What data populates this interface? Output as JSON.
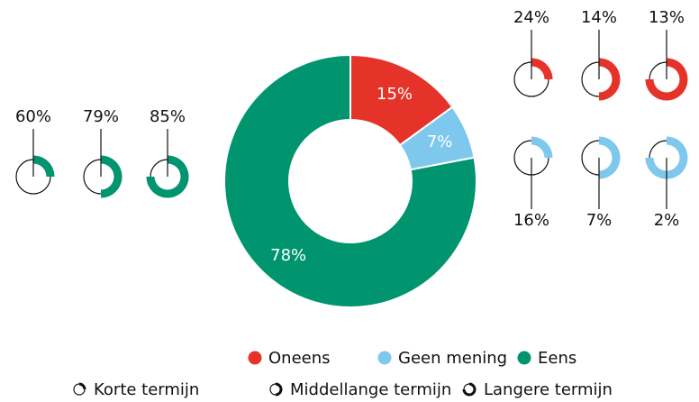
{
  "chart_data": {
    "type": "donut",
    "series": [
      {
        "name": "Oneens",
        "color": "#e63329",
        "value": 15,
        "value_label": "15%",
        "term_values": [
          24,
          14,
          13
        ],
        "term_labels": [
          "24%",
          "14%",
          "13%"
        ]
      },
      {
        "name": "Geen mening",
        "color": "#7ec8ee",
        "value": 7,
        "value_label": "7%",
        "term_values": [
          16,
          7,
          2
        ],
        "term_labels": [
          "16%",
          "7%",
          "2%"
        ]
      },
      {
        "name": "Eens",
        "color": "#00946f",
        "value": 78,
        "value_label": "78%",
        "term_values": [
          60,
          79,
          85
        ],
        "term_labels": [
          "60%",
          "79%",
          "85%"
        ]
      }
    ],
    "terms": [
      "Korte termijn",
      "Middellange termijn",
      "Langere termijn"
    ]
  }
}
